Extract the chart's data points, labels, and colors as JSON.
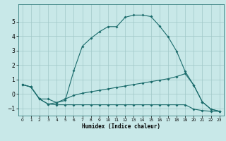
{
  "xlabel": "Humidex (Indice chaleur)",
  "background_color": "#c8e8e8",
  "grid_color": "#a0c8c8",
  "line_color": "#1a6b6b",
  "xlim": [
    -0.5,
    23.5
  ],
  "ylim": [
    -1.5,
    6.2
  ],
  "yticks": [
    -1,
    0,
    1,
    2,
    3,
    4,
    5
  ],
  "xticks": [
    0,
    1,
    2,
    3,
    4,
    5,
    6,
    7,
    8,
    9,
    10,
    11,
    12,
    13,
    14,
    15,
    16,
    17,
    18,
    19,
    20,
    21,
    22,
    23
  ],
  "series": [
    {
      "x": [
        0,
        1,
        2,
        3,
        4,
        5,
        6,
        7,
        8,
        9,
        10,
        11,
        12,
        13,
        14,
        15,
        16,
        17,
        18,
        19,
        20,
        21,
        22,
        23
      ],
      "y": [
        0.65,
        0.48,
        -0.35,
        -0.7,
        -0.75,
        -0.75,
        -0.75,
        -0.75,
        -0.75,
        -0.75,
        -0.75,
        -0.75,
        -0.75,
        -0.75,
        -0.75,
        -0.75,
        -0.75,
        -0.75,
        -0.75,
        -0.75,
        -1.05,
        -1.15,
        -1.2,
        -1.2
      ]
    },
    {
      "x": [
        0,
        1,
        2,
        3,
        4,
        5,
        6,
        7,
        8,
        9,
        10,
        11,
        12,
        13,
        14,
        15,
        16,
        17,
        18,
        19,
        20,
        21,
        22,
        23
      ],
      "y": [
        0.65,
        0.48,
        -0.35,
        -0.35,
        -0.6,
        -0.35,
        -0.1,
        0.05,
        0.15,
        0.25,
        0.35,
        0.45,
        0.55,
        0.65,
        0.75,
        0.85,
        0.95,
        1.05,
        1.2,
        1.4,
        0.6,
        -0.55,
        -1.05,
        -1.2
      ]
    },
    {
      "x": [
        0,
        1,
        2,
        3,
        4,
        5,
        6,
        7,
        8,
        9,
        10,
        11,
        12,
        13,
        14,
        15,
        16,
        17,
        18,
        19,
        20,
        21,
        22,
        23
      ],
      "y": [
        0.65,
        0.48,
        -0.35,
        -0.7,
        -0.6,
        -0.45,
        1.6,
        3.3,
        3.85,
        4.3,
        4.65,
        4.65,
        5.3,
        5.45,
        5.45,
        5.35,
        4.7,
        3.95,
        2.95,
        1.55,
        0.6,
        -0.55,
        -1.05,
        -1.2
      ]
    }
  ]
}
